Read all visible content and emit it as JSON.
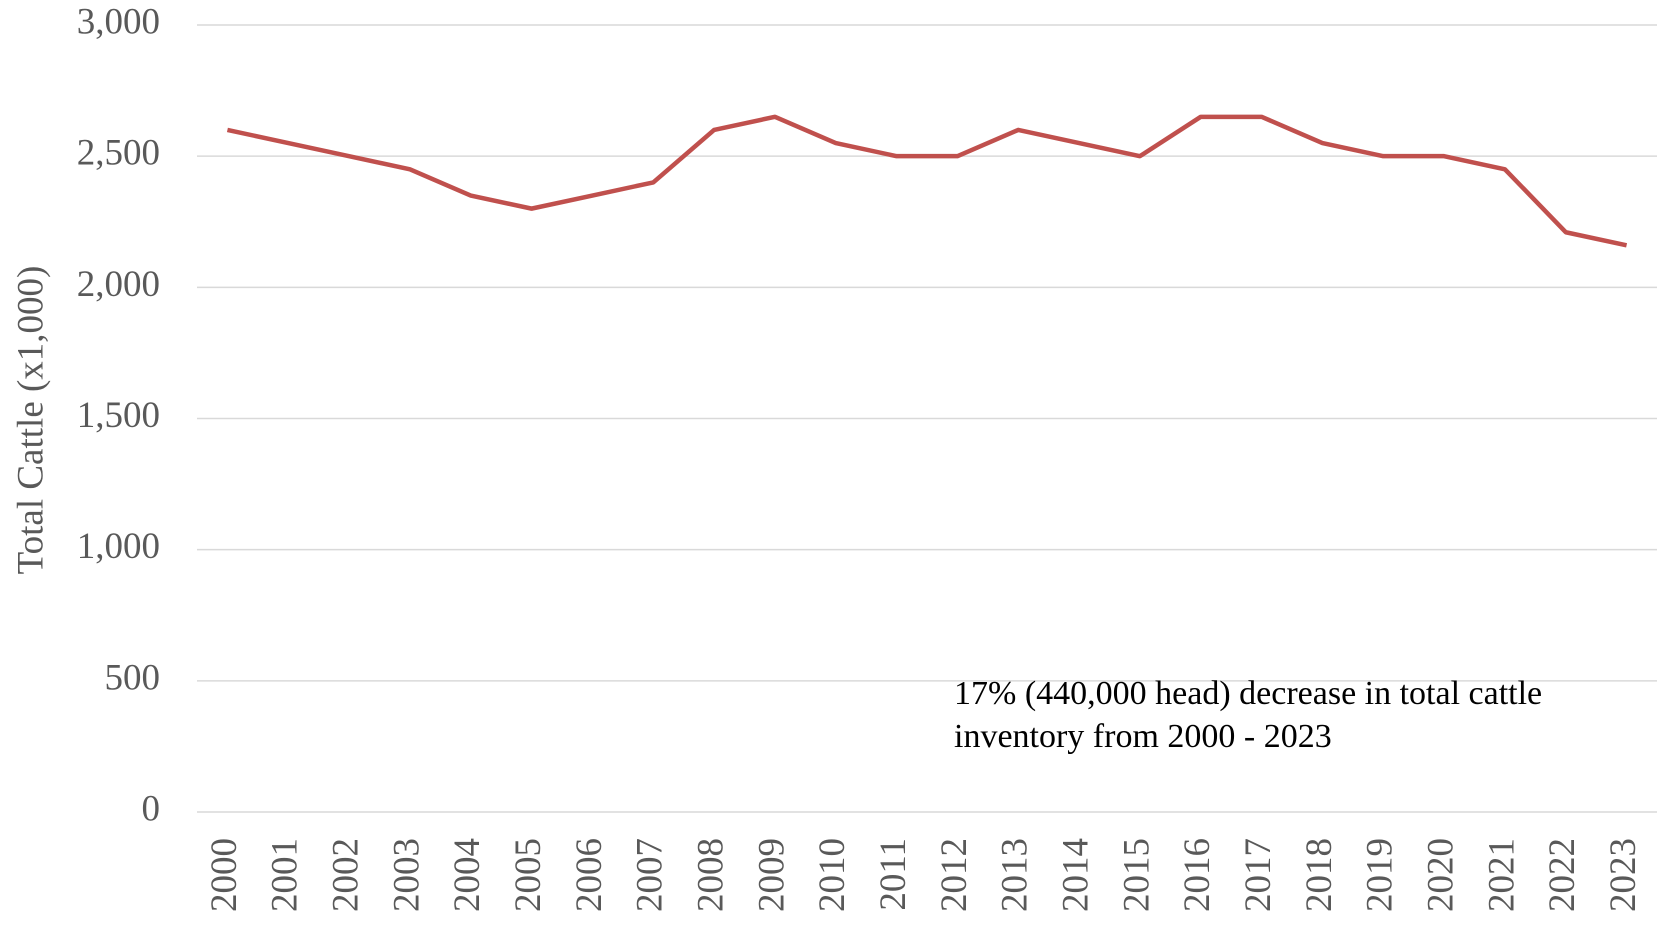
{
  "chart_data": {
    "type": "line",
    "y_label": "Total Cattle (x1,000)",
    "categories": [
      "2000",
      "2001",
      "2002",
      "2003",
      "2004",
      "2005",
      "2006",
      "2007",
      "2008",
      "2009",
      "2010",
      "2011",
      "2012",
      "2013",
      "2014",
      "2015",
      "2016",
      "2017",
      "2018",
      "2019",
      "2020",
      "2021",
      "2022",
      "2023"
    ],
    "series": [
      {
        "name": "Total Cattle",
        "color": "#c0504d",
        "values": [
          2600,
          2550,
          2500,
          2450,
          2350,
          2300,
          2350,
          2400,
          2600,
          2650,
          2550,
          2500,
          2500,
          2600,
          2550,
          2500,
          2650,
          2650,
          2550,
          2500,
          2500,
          2450,
          2210,
          2160
        ]
      }
    ],
    "ylim": [
      0,
      3000
    ],
    "yticks": [
      0,
      500,
      {
        "value": 1000,
        "label": "1,000"
      },
      {
        "value": 1500,
        "label": "1,500"
      },
      {
        "value": 2000,
        "label": "2,000"
      },
      {
        "value": 2500,
        "label": "2,500"
      },
      {
        "value": 3000,
        "label": "3,000"
      }
    ],
    "grid": true,
    "annotation": [
      "17% (440,000 head) decrease in total cattle",
      "inventory from 2000 - 2023"
    ]
  }
}
